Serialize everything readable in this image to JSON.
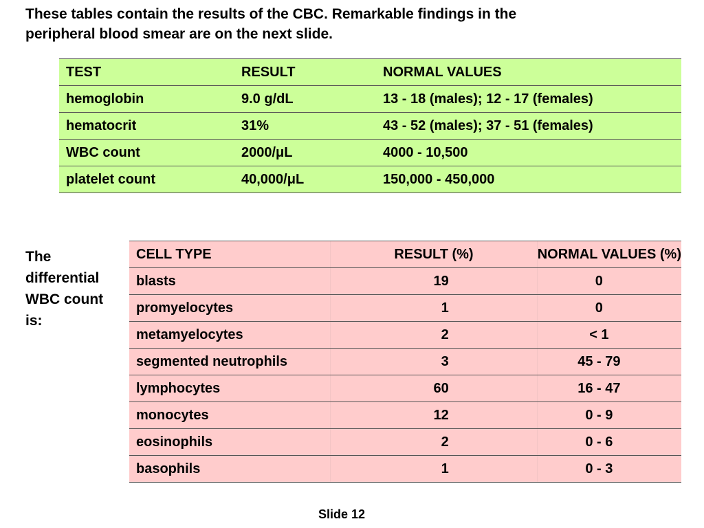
{
  "heading": {
    "line1": "These tables contain the results of the CBC.  Remarkable findings in the",
    "line2": "peripheral blood smear are on the next slide."
  },
  "cbc_table": {
    "headers": [
      "TEST",
      "RESULT",
      "NORMAL VALUES"
    ],
    "rows": [
      [
        "hemoglobin",
        "9.0 g/dL",
        "13 - 18 (males); 12 - 17 (females)"
      ],
      [
        "hematocrit",
        "31%",
        "43 - 52 (males); 37 - 51 (females)"
      ],
      [
        "WBC count",
        "2000/μL",
        "4000 - 10,500"
      ],
      [
        "platelet count",
        "40,000/μL",
        "150,000 - 450,000"
      ]
    ],
    "background": "#ccff99"
  },
  "differential": {
    "label_lines": [
      "The",
      "differential",
      "WBC count",
      "is:"
    ],
    "headers": [
      "CELL TYPE",
      "RESULT (%)",
      "NORMAL VALUES (%)"
    ],
    "rows": [
      [
        "blasts",
        "19",
        "0"
      ],
      [
        "promyelocytes",
        "1",
        "0"
      ],
      [
        "metamyelocytes",
        "2",
        "< 1"
      ],
      [
        "segmented neutrophils",
        "3",
        "45 - 79"
      ],
      [
        "lymphocytes",
        "60",
        "16 - 47"
      ],
      [
        "monocytes",
        "12",
        "0 - 9"
      ],
      [
        "eosinophils",
        "2",
        "0 - 6"
      ],
      [
        "basophils",
        "1",
        "0 - 3"
      ]
    ],
    "background": "#ffcccc"
  },
  "footer": {
    "slide_label": "Slide 12"
  }
}
